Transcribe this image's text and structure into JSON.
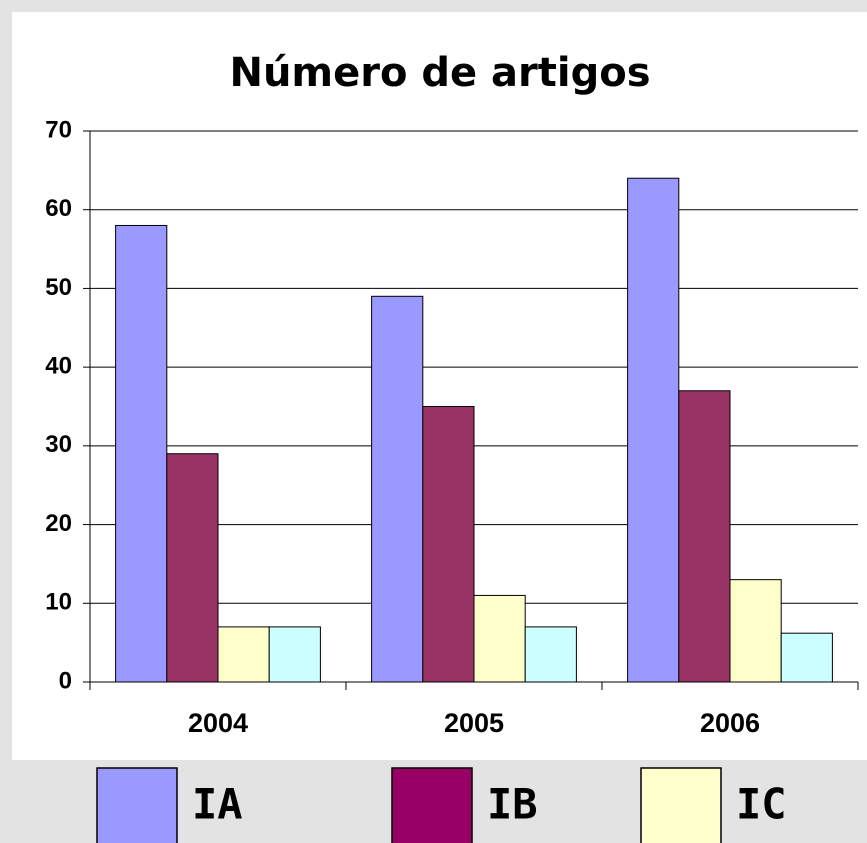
{
  "chart_data": {
    "type": "bar",
    "title": "Número de artigos",
    "categories": [
      "2004",
      "2005",
      "2006"
    ],
    "series": [
      {
        "name": "IA",
        "color": "#9999ff",
        "values": [
          58,
          49,
          64
        ]
      },
      {
        "name": "IB",
        "color": "#993366",
        "values": [
          29,
          35,
          37
        ]
      },
      {
        "name": "IC",
        "color": "#ffffcc",
        "values": [
          7,
          11,
          13
        ]
      },
      {
        "name": null,
        "color": "#ccffff",
        "values": [
          7,
          7,
          6.2
        ]
      }
    ],
    "ylim": [
      0,
      70
    ],
    "yticks": [
      0,
      10,
      20,
      30,
      40,
      50,
      60,
      70
    ],
    "grid": true
  }
}
